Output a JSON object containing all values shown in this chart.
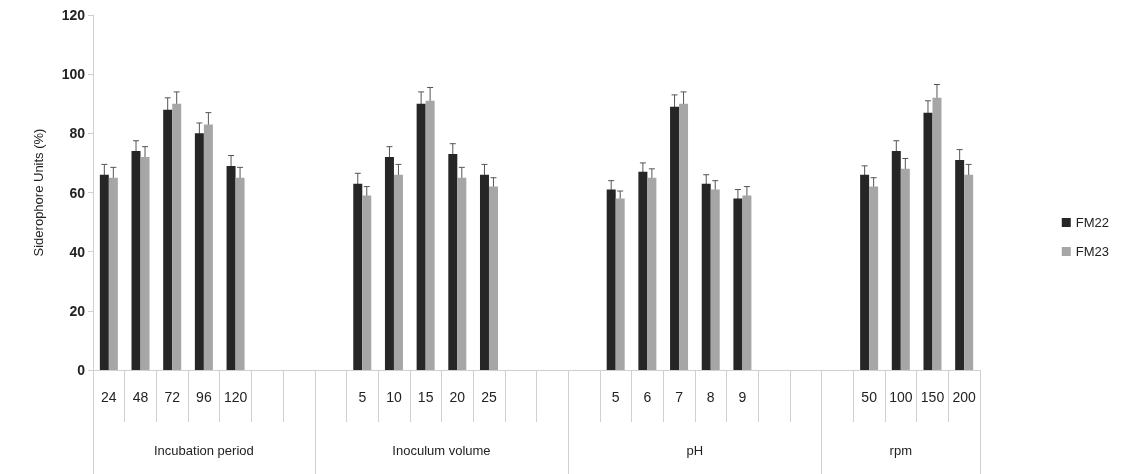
{
  "chart_data": {
    "type": "bar",
    "ylabel": "Siderophore Units (%)",
    "categories": [
      "24",
      "48",
      "72",
      "96",
      "120",
      null,
      null,
      null,
      "5",
      "10",
      "15",
      "20",
      "25",
      null,
      null,
      null,
      "5",
      "6",
      "7",
      "8",
      "9",
      null,
      null,
      null,
      "50",
      "100",
      "150",
      "200"
    ],
    "annotations": [
      "Incubation period",
      "Inoculum volume",
      "pH",
      "rpm"
    ],
    "series": [
      {
        "name": "FM22",
        "color": "#262626",
        "values": [
          66,
          74,
          88,
          80,
          69,
          null,
          null,
          null,
          63,
          72,
          90,
          73,
          66,
          null,
          null,
          null,
          61,
          67,
          89,
          63,
          58,
          null,
          null,
          null,
          66,
          74,
          87,
          71
        ],
        "errors": [
          3.5,
          3.5,
          4,
          3.5,
          3.5,
          null,
          null,
          null,
          3.5,
          3.5,
          4,
          3.5,
          3.5,
          null,
          null,
          null,
          3,
          3,
          4,
          3,
          3,
          null,
          null,
          null,
          3,
          3.5,
          4,
          3.5
        ]
      },
      {
        "name": "FM23",
        "color": "#a6a6a6",
        "values": [
          65,
          72,
          90,
          83,
          65,
          null,
          null,
          null,
          59,
          66,
          91,
          65,
          62,
          null,
          null,
          null,
          58,
          65,
          90,
          61,
          59,
          null,
          null,
          null,
          62,
          68,
          92,
          66
        ],
        "errors": [
          3.5,
          3.5,
          4,
          4,
          3.5,
          null,
          null,
          null,
          3,
          3.5,
          4.5,
          3.5,
          3,
          null,
          null,
          null,
          2.5,
          3,
          4,
          3,
          3,
          null,
          null,
          null,
          3,
          3.5,
          4.5,
          3.5
        ]
      }
    ],
    "ylim": [
      0,
      120
    ],
    "yticks": [
      0,
      20,
      40,
      60,
      80,
      100,
      120
    ],
    "grid": false,
    "legend": "right"
  }
}
